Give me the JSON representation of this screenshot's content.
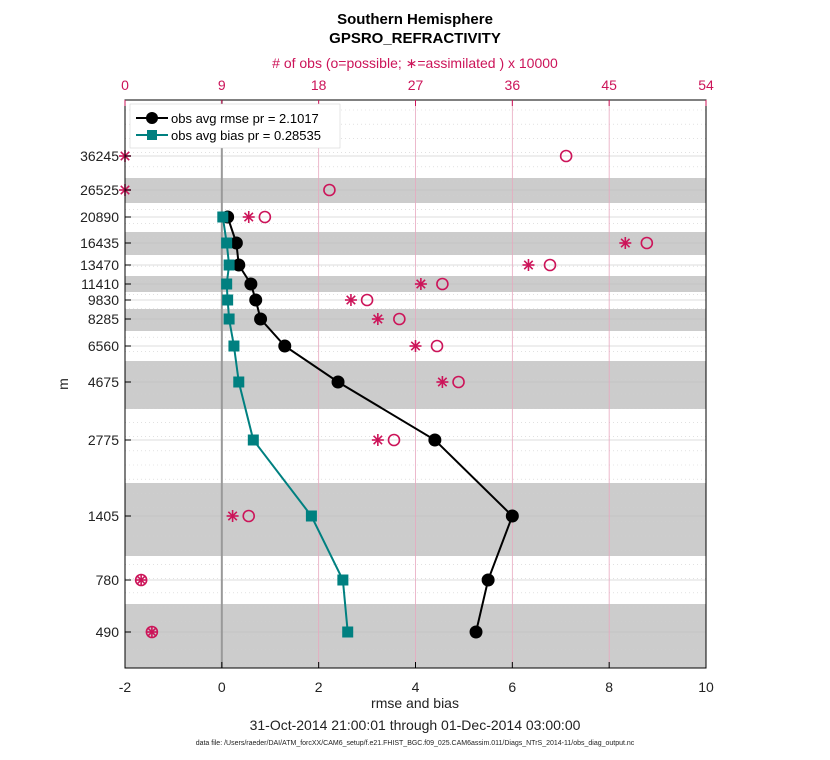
{
  "chart_data": {
    "type": "line",
    "title": "Southern Hemisphere",
    "subtitle": "GPSRO_REFRACTIVITY",
    "top_axis_label": "# of obs (o=possible; ∗=assimilated ) x 10000",
    "top_ticks": [
      "0",
      "9",
      "18",
      "27",
      "36",
      "45",
      "54"
    ],
    "top_range": [
      0,
      54
    ],
    "xlabel": "rmse and bias",
    "ylabel": "m",
    "xlim": [
      -2,
      10
    ],
    "x_ticks": [
      "-2",
      "0",
      "2",
      "4",
      "6",
      "8",
      "10"
    ],
    "y_levels": [
      36245,
      26525,
      20890,
      16435,
      13470,
      11410,
      9830,
      8285,
      6560,
      4675,
      2775,
      1405,
      780,
      490
    ],
    "y_tick_labels": [
      "36245",
      "26525",
      "20890",
      "16435",
      "13470",
      "11410",
      "9830",
      "8285",
      "6560",
      "4675",
      "2775",
      "1405",
      "780",
      "490"
    ],
    "shaded_bands_note": "alternating vertical layers",
    "time_range": "31-Oct-2014 21:00:01 through 01-Dec-2014 03:00:00",
    "data_file": "data file: /Users/raeder/DAI/ATM_forcXX/CAM6_setup/f.e21.FHIST_BGC.f09_025.CAM6assim.011/Diags_NTrS_2014-11/obs_diag_output.nc",
    "series": [
      {
        "name": "obs avg rmse",
        "legend": "obs avg rmse pr = 2.1017",
        "color": "#000000",
        "values": [
          null,
          null,
          0.12,
          0.3,
          0.35,
          0.6,
          0.7,
          0.8,
          1.3,
          2.4,
          4.4,
          6.0,
          5.5,
          5.25
        ]
      },
      {
        "name": "obs avg bias",
        "legend": "obs avg bias pr = 0.28535",
        "color": "#008080",
        "values": [
          null,
          null,
          0.02,
          0.1,
          0.15,
          0.1,
          0.12,
          0.15,
          0.25,
          0.35,
          0.65,
          1.85,
          2.5,
          2.6
        ]
      }
    ],
    "obs_possible": [
      41,
      19,
      13,
      48.5,
      39.5,
      29.5,
      22.5,
      25.5,
      29,
      31,
      25,
      11.5,
      1.5,
      2.5
    ],
    "obs_assimilated": [
      0,
      0,
      11.5,
      46.5,
      37.5,
      27.5,
      21,
      23.5,
      27,
      29.5,
      23.5,
      10,
      1.5,
      2.5
    ]
  }
}
